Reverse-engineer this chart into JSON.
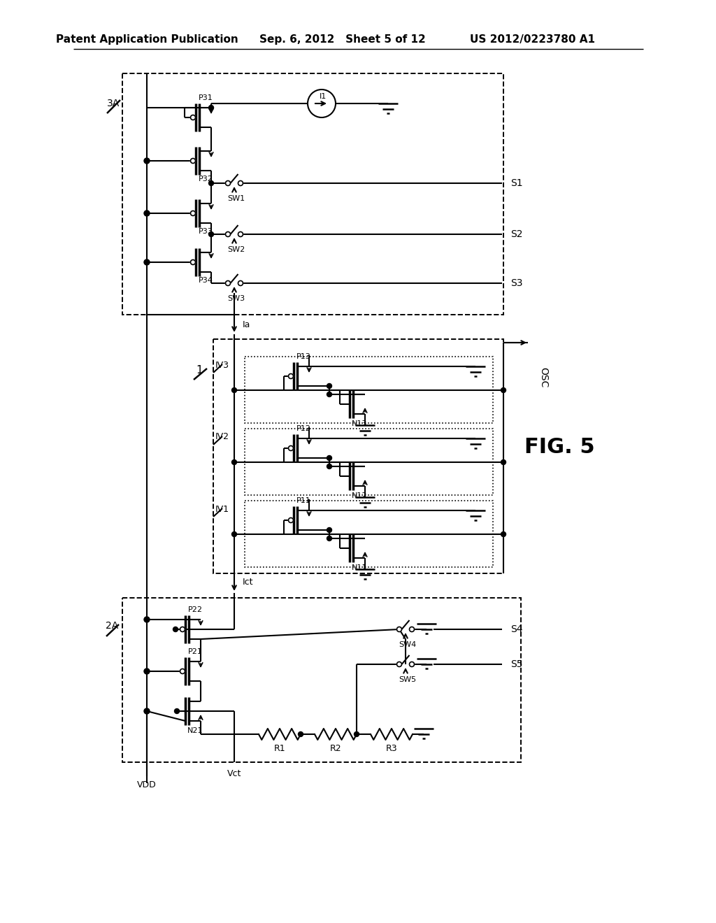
{
  "title_left": "Patent Application Publication",
  "title_mid": "Sep. 6, 2012   Sheet 5 of 12",
  "title_right": "US 2012/0223780 A1",
  "fig_label": "FIG. 5",
  "background": "#ffffff"
}
